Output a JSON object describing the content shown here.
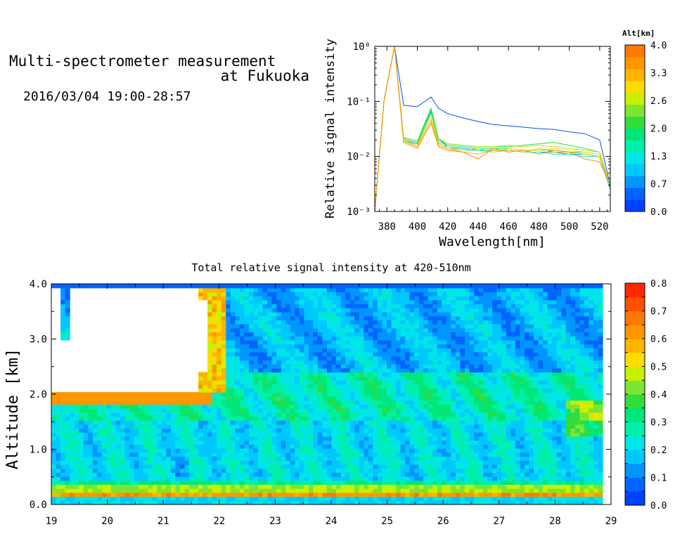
{
  "header": {
    "title_line1": "Multi-spectrometer measurement",
    "title_line2": "at Fukuoka",
    "datetime": "2016/03/04 19:00-28:57"
  },
  "chart_data": [
    {
      "type": "line",
      "title": "",
      "xlabel": "Wavelength[nm]",
      "ylabel": "Relative signal intensity",
      "xlim": [
        372,
        527
      ],
      "ylim": [
        0.001,
        1
      ],
      "yscale": "log",
      "x_ticks": [
        "380",
        "400",
        "420",
        "440",
        "460",
        "480",
        "500",
        "520"
      ],
      "y_ticks": [
        "10⁻³",
        "10⁻²",
        "10⁻¹",
        "10⁰"
      ],
      "legend_title": "Alt[km]",
      "colorbar_ticks": [
        "4.0",
        "3.3",
        "2.6",
        "2.0",
        "1.3",
        "0.7",
        "0.0"
      ],
      "colorbar_colors": [
        "#0040ff",
        "#0064ff",
        "#0096ff",
        "#00c8ff",
        "#00e6e6",
        "#00f0aa",
        "#00e678",
        "#32dc3c",
        "#7ae632",
        "#c8f000",
        "#ffdc00",
        "#ffb400",
        "#ff9600",
        "#ff7800"
      ],
      "x": [
        372,
        378,
        385,
        391,
        400,
        409,
        414,
        420,
        430,
        440,
        450,
        460,
        470,
        480,
        490,
        500,
        510,
        520,
        527
      ],
      "series": [
        {
          "color": "#0050ff",
          "values": [
            0.001,
            0.1,
            1.0,
            0.085,
            0.08,
            0.12,
            0.075,
            0.06,
            0.05,
            0.043,
            0.038,
            0.036,
            0.034,
            0.032,
            0.031,
            0.028,
            0.026,
            0.02,
            0.003
          ]
        },
        {
          "color": "#00a0ff",
          "values": [
            0.001,
            0.1,
            1.0,
            0.02,
            0.017,
            0.065,
            0.02,
            0.015,
            0.014,
            0.013,
            0.013,
            0.013,
            0.012,
            0.012,
            0.012,
            0.011,
            0.011,
            0.01,
            0.0025
          ]
        },
        {
          "color": "#00e6e6",
          "values": [
            0.001,
            0.1,
            1.0,
            0.019,
            0.016,
            0.06,
            0.018,
            0.014,
            0.013,
            0.013,
            0.012,
            0.013,
            0.012,
            0.012,
            0.011,
            0.011,
            0.01,
            0.01,
            0.0025
          ]
        },
        {
          "color": "#00e678",
          "values": [
            0.001,
            0.1,
            1.0,
            0.021,
            0.018,
            0.07,
            0.02,
            0.016,
            0.015,
            0.014,
            0.014,
            0.014,
            0.013,
            0.013,
            0.013,
            0.012,
            0.012,
            0.011,
            0.0028
          ]
        },
        {
          "color": "#32dc3c",
          "values": [
            0.001,
            0.1,
            1.0,
            0.022,
            0.019,
            0.075,
            0.021,
            0.017,
            0.016,
            0.015,
            0.015,
            0.015,
            0.016,
            0.017,
            0.018,
            0.016,
            0.014,
            0.012,
            0.003
          ]
        },
        {
          "color": "#a0e628",
          "values": [
            0.001,
            0.1,
            1.0,
            0.021,
            0.018,
            0.06,
            0.02,
            0.017,
            0.016,
            0.015,
            0.015,
            0.016,
            0.015,
            0.016,
            0.015,
            0.014,
            0.013,
            0.012,
            0.003
          ]
        },
        {
          "color": "#ffdc00",
          "values": [
            0.001,
            0.1,
            1.0,
            0.02,
            0.016,
            0.05,
            0.017,
            0.015,
            0.013,
            0.014,
            0.012,
            0.014,
            0.013,
            0.013,
            0.014,
            0.013,
            0.012,
            0.011,
            0.003
          ]
        },
        {
          "color": "#ffb400",
          "values": [
            0.001,
            0.1,
            1.0,
            0.019,
            0.015,
            0.045,
            0.016,
            0.014,
            0.012,
            0.011,
            0.013,
            0.013,
            0.012,
            0.014,
            0.012,
            0.012,
            0.011,
            0.01,
            0.003
          ]
        },
        {
          "color": "#ff8c00",
          "values": [
            0.001,
            0.1,
            1.0,
            0.018,
            0.014,
            0.04,
            0.015,
            0.013,
            0.012,
            0.009,
            0.014,
            0.012,
            0.013,
            0.011,
            0.013,
            0.012,
            0.009,
            0.008,
            0.003
          ]
        }
      ]
    },
    {
      "type": "heatmap",
      "title": "Total relative signal intensity at 420-510nm",
      "xlabel": "",
      "ylabel": "Altitude [km]",
      "xlim": [
        19,
        29
      ],
      "ylim": [
        0,
        4
      ],
      "x_ticks": [
        "19",
        "20",
        "21",
        "22",
        "23",
        "24",
        "25",
        "26",
        "27",
        "28",
        "29"
      ],
      "y_ticks": [
        "0.0",
        "1.0",
        "2.0",
        "3.0",
        "4.0"
      ],
      "colorbar_range": [
        0,
        0.8
      ],
      "colorbar_ticks": [
        "0.8",
        "0.7",
        "0.6",
        "0.5",
        "0.4",
        "0.3",
        "0.2",
        "0.1",
        "0.0"
      ],
      "colorbar_colors": [
        "#0040ff",
        "#0064ff",
        "#0096ff",
        "#00c8ff",
        "#00e6e6",
        "#00f0aa",
        "#00e678",
        "#32dc3c",
        "#7ae632",
        "#c8f000",
        "#ffdc00",
        "#ffb400",
        "#ff9600",
        "#ff7800",
        "#ff5000",
        "#ff2800"
      ],
      "data_extent_x": [
        19,
        28.85
      ],
      "clear_region_x": [
        19,
        21.9
      ],
      "clear_region_alt_km": 2.0,
      "dominant_value_band_km": {
        "0.15": 0.6,
        "0.25": 0.4,
        "1.0": 0.2,
        "1.9": 0.3,
        "3.3": 0.15
      }
    }
  ]
}
